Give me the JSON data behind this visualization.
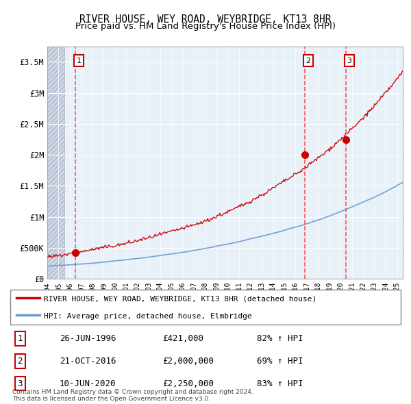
{
  "title": "RIVER HOUSE, WEY ROAD, WEYBRIDGE, KT13 8HR",
  "subtitle": "Price paid vs. HM Land Registry's House Price Index (HPI)",
  "ylim": [
    0,
    3750000
  ],
  "yticks": [
    0,
    500000,
    1000000,
    1500000,
    2000000,
    2500000,
    3000000,
    3500000
  ],
  "ytick_labels": [
    "£0",
    "£500K",
    "£1M",
    "£1.5M",
    "£2M",
    "£2.5M",
    "£3M",
    "£3.5M"
  ],
  "xlim_start": 1994.0,
  "xlim_end": 2025.5,
  "sale_dates": [
    1996.486,
    2016.806,
    2020.44
  ],
  "sale_prices": [
    421000,
    2000000,
    2250000
  ],
  "sale_labels": [
    "1",
    "2",
    "3"
  ],
  "red_line_color": "#cc0000",
  "blue_line_color": "#6699cc",
  "dashed_line_color": "#ff4444",
  "background_plot": "#e8f0f8",
  "background_hatch": "#d0d8e8",
  "legend_label_red": "RIVER HOUSE, WEY ROAD, WEYBRIDGE, KT13 8HR (detached house)",
  "legend_label_blue": "HPI: Average price, detached house, Elmbridge",
  "table_data": [
    [
      "1",
      "26-JUN-1996",
      "£421,000",
      "82% ↑ HPI"
    ],
    [
      "2",
      "21-OCT-2016",
      "£2,000,000",
      "69% ↑ HPI"
    ],
    [
      "3",
      "10-JUN-2020",
      "£2,250,000",
      "83% ↑ HPI"
    ]
  ],
  "footnote": "Contains HM Land Registry data © Crown copyright and database right 2024.\nThis data is licensed under the Open Government Licence v3.0.",
  "title_fontsize": 10.5,
  "subtitle_fontsize": 9.5
}
